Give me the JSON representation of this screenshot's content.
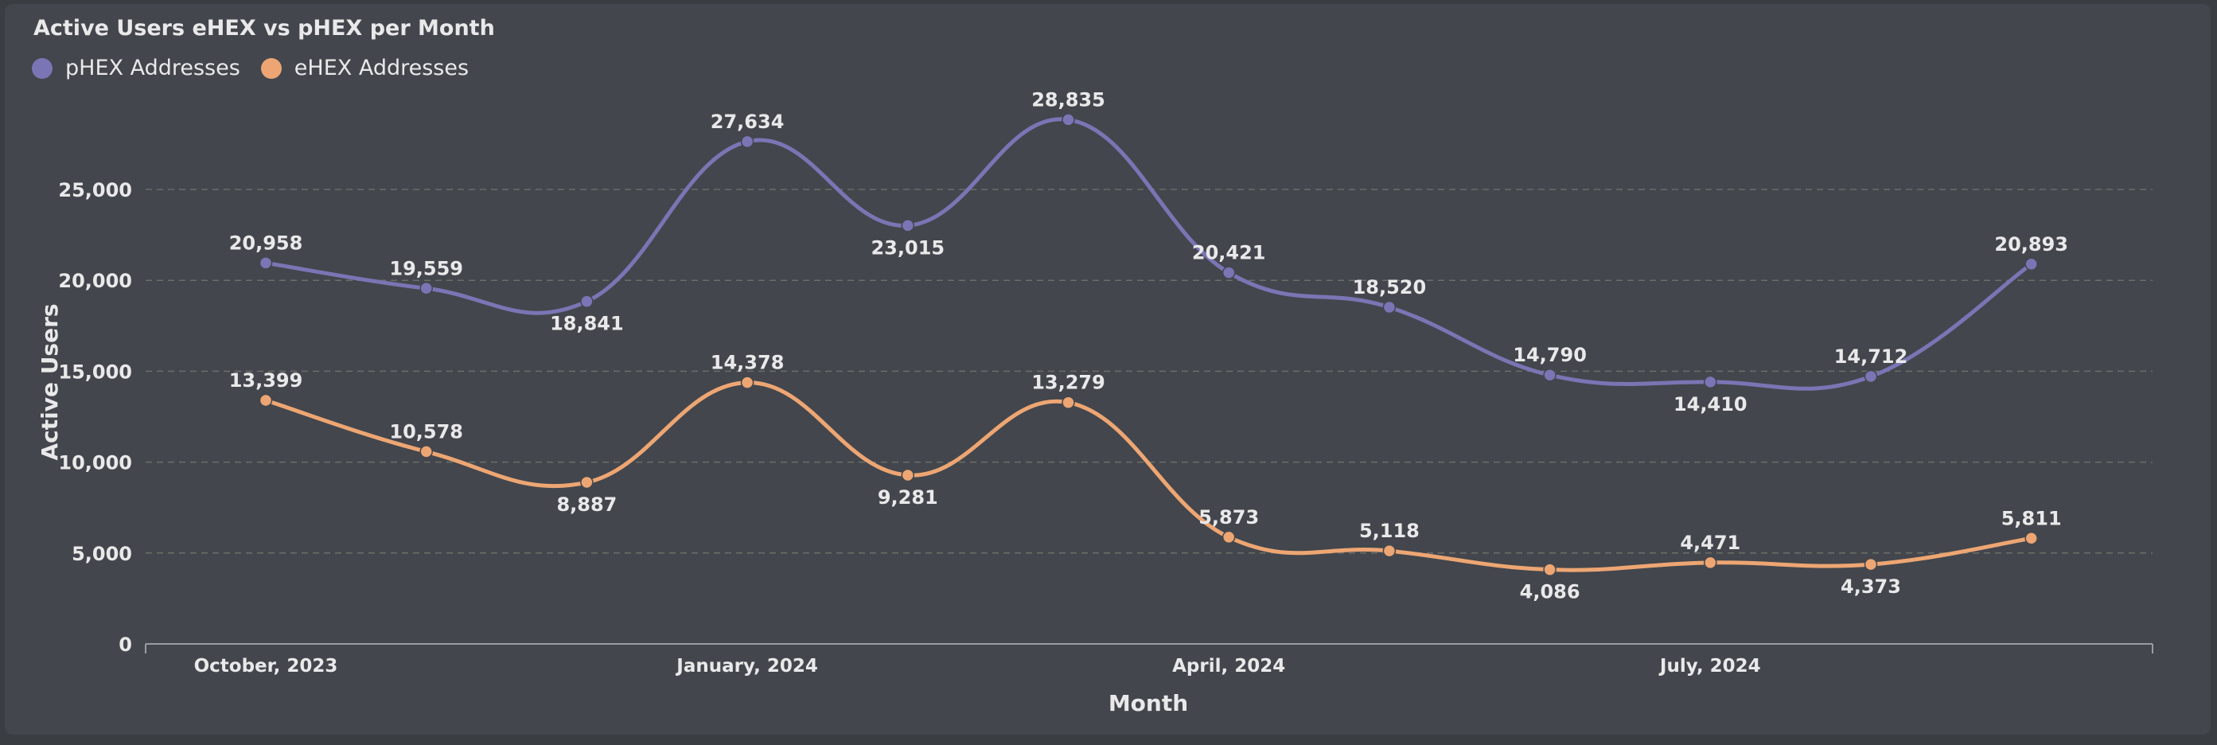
{
  "chart_data": {
    "type": "line",
    "title": "Active Users eHEX vs pHEX per Month",
    "xlabel": "Month",
    "ylabel": "Active Users",
    "ylim": [
      0,
      30000
    ],
    "yticks": [
      0,
      5000,
      10000,
      15000,
      20000,
      25000
    ],
    "ytick_labels": [
      "0",
      "5,000",
      "10,000",
      "15,000",
      "20,000",
      "25,000"
    ],
    "x": [
      "2023-10",
      "2023-11",
      "2023-12",
      "2024-01",
      "2024-02",
      "2024-03",
      "2024-04",
      "2024-05",
      "2024-06",
      "2024-07",
      "2024-08",
      "2024-09"
    ],
    "xtick_labels": [
      {
        "x": "2023-10",
        "label": "October, 2023"
      },
      {
        "x": "2024-01",
        "label": "January, 2024"
      },
      {
        "x": "2024-04",
        "label": "April, 2024"
      },
      {
        "x": "2024-07",
        "label": "July, 2024"
      }
    ],
    "grid": true,
    "legend_position": "top-left",
    "series": [
      {
        "name": "pHEX Addresses",
        "color": "#7a75b4",
        "values": [
          20958,
          19559,
          18841,
          27634,
          23015,
          28835,
          20421,
          18520,
          14790,
          14410,
          14712,
          20893
        ],
        "labels": [
          "20,958",
          "19,559",
          "18,841",
          "27,634",
          "23,015",
          "28,835",
          "20,421",
          "18,520",
          "14,790",
          "14,410",
          "14,712",
          "20,893"
        ],
        "label_side": [
          "above",
          "above",
          "below",
          "above",
          "below",
          "above",
          "above",
          "above",
          "above",
          "below",
          "above",
          "above"
        ]
      },
      {
        "name": "eHEX Addresses",
        "color": "#eda673",
        "values": [
          13399,
          10578,
          8887,
          14378,
          9281,
          13279,
          5873,
          5118,
          4086,
          4471,
          4373,
          5811
        ],
        "labels": [
          "13,399",
          "10,578",
          "8,887",
          "14,378",
          "9,281",
          "13,279",
          "5,873",
          "5,118",
          "4,086",
          "4,471",
          "4,373",
          "5,811"
        ],
        "label_side": [
          "above",
          "above",
          "below",
          "above",
          "below",
          "above",
          "above",
          "above",
          "below",
          "above",
          "below",
          "above"
        ]
      }
    ]
  }
}
